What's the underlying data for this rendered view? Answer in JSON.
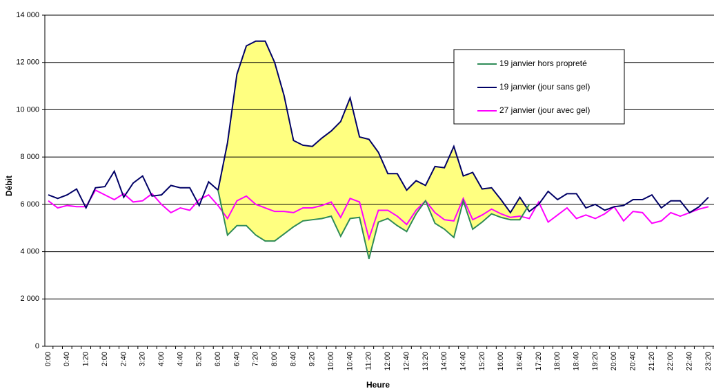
{
  "chart_data": {
    "type": "line",
    "xlabel": "Heure",
    "ylabel": "Débit",
    "categories": [
      "0:00",
      null,
      "0:40",
      null,
      "1:20",
      null,
      "2:00",
      null,
      "2:40",
      null,
      "3:20",
      null,
      "4:00",
      null,
      "4:40",
      null,
      "5:20",
      null,
      "6:00",
      null,
      "6:40",
      null,
      "7:20",
      null,
      "8:00",
      null,
      "8:40",
      null,
      "9:20",
      null,
      "10:00",
      null,
      "10:40",
      null,
      "11:20",
      null,
      "12:00",
      null,
      "12:40",
      null,
      "13:20",
      null,
      "14:00",
      null,
      "14:40",
      null,
      "15:20",
      null,
      "16:00",
      null,
      "16:40",
      null,
      "17:20",
      null,
      "18:00",
      null,
      "18:40",
      null,
      "19:20",
      null,
      "20:00",
      null,
      "20:40",
      null,
      "21:20",
      null,
      "22:00",
      null,
      "22:40",
      null,
      "23:20"
    ],
    "series": [
      {
        "name": "19 janvier hors propreté",
        "color": "#2e8b57",
        "values": [
          null,
          null,
          null,
          null,
          null,
          null,
          null,
          null,
          null,
          null,
          null,
          null,
          null,
          null,
          null,
          null,
          null,
          null,
          6600,
          4700,
          5100,
          5100,
          4700,
          4450,
          4450,
          4750,
          5050,
          5300,
          5350,
          5400,
          5500,
          4650,
          5400,
          5450,
          3700,
          5250,
          5400,
          5100,
          4850,
          5600,
          6150,
          5200,
          4950,
          4600,
          6150,
          4950,
          5250,
          5600,
          5450,
          5350,
          5350,
          6000,
          null,
          null,
          null,
          null,
          null,
          null,
          null,
          null,
          null,
          null,
          null,
          null,
          null,
          null,
          null,
          null,
          null,
          null,
          null
        ]
      },
      {
        "name": "19 janvier (jour sans gel)",
        "color": "#000066",
        "values": [
          6400,
          6250,
          6400,
          6650,
          5850,
          6700,
          6750,
          7400,
          6300,
          6900,
          7200,
          6350,
          6400,
          6800,
          6700,
          6700,
          5950,
          6950,
          6600,
          8600,
          11500,
          12700,
          12900,
          12900,
          12000,
          10600,
          8700,
          8500,
          8450,
          8800,
          9100,
          9500,
          10500,
          8850,
          8750,
          8200,
          7300,
          7300,
          6600,
          7000,
          6800,
          7600,
          7550,
          8450,
          7200,
          7350,
          6650,
          6700,
          6200,
          5650,
          6300,
          5700,
          6000,
          6550,
          6200,
          6450,
          6450,
          5850,
          6000,
          5750,
          5900,
          5950,
          6200,
          6200,
          6400,
          5850,
          6150,
          6150,
          5650,
          5900,
          6300
        ]
      },
      {
        "name": "27 janvier (jour avec gel)",
        "color": "#ff00ff",
        "values": [
          6150,
          5850,
          5950,
          5900,
          5900,
          6600,
          6400,
          6200,
          6450,
          6100,
          6150,
          6450,
          6000,
          5650,
          5850,
          5750,
          6200,
          6400,
          5950,
          5400,
          6150,
          6350,
          6000,
          5850,
          5700,
          5700,
          5650,
          5850,
          5850,
          5950,
          6100,
          5450,
          6250,
          6100,
          4550,
          5750,
          5750,
          5500,
          5150,
          5750,
          6150,
          5650,
          5350,
          5300,
          6250,
          5350,
          5550,
          5800,
          5600,
          5450,
          5500,
          5400,
          6100,
          5250,
          5550,
          5850,
          5400,
          5550,
          5400,
          5600,
          5900,
          5300,
          5700,
          5650,
          5200,
          5300,
          5650,
          5500,
          5650,
          5800,
          5900
        ]
      }
    ],
    "fill_between": {
      "series": [
        1,
        0
      ],
      "color": "#ffff80"
    },
    "ylim": [
      0,
      14000
    ],
    "yticks": [
      0,
      {
        "value": 2000,
        "label": "2 000"
      },
      {
        "value": 4000,
        "label": "4 000"
      },
      {
        "value": 6000,
        "label": "6 000"
      },
      {
        "value": 8000,
        "label": "8 000"
      },
      {
        "value": 10000,
        "label": "10 000"
      },
      {
        "value": 12000,
        "label": "12 000"
      },
      {
        "value": 14000,
        "label": "14 000"
      }
    ],
    "grid": true,
    "legend": "upper right"
  }
}
